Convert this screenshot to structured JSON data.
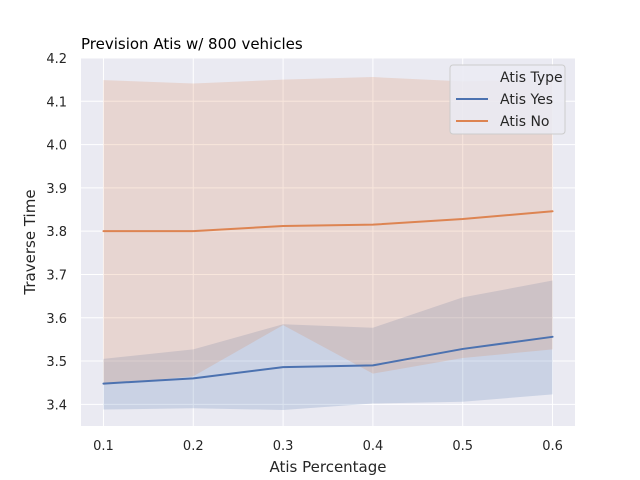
{
  "chart_data": {
    "type": "line",
    "title": "Prevision Atis w/ 800 vehicles",
    "xlabel": "Atis Percentage",
    "ylabel": "Traverse Time",
    "x": [
      0.1,
      0.2,
      0.3,
      0.4,
      0.5,
      0.6
    ],
    "x_tick_labels": [
      "0.1",
      "0.2",
      "0.3",
      "0.4",
      "0.5",
      "0.6"
    ],
    "y_ticks": [
      3.4,
      3.5,
      3.6,
      3.7,
      3.8,
      3.9,
      4.0,
      4.1,
      4.2
    ],
    "y_tick_labels": [
      "3.4",
      "3.5",
      "3.6",
      "3.7",
      "3.8",
      "3.9",
      "4.0",
      "4.1",
      "4.2"
    ],
    "xlim": [
      0.075,
      0.625
    ],
    "ylim": [
      3.35,
      4.2
    ],
    "grid": true,
    "legend": {
      "title": "Atis Type",
      "position": "top-right"
    },
    "series": [
      {
        "name": "Atis Yes",
        "color": "#4c72b0",
        "values": [
          3.448,
          3.46,
          3.486,
          3.49,
          3.528,
          3.556
        ],
        "ci_lower": [
          3.388,
          3.391,
          3.387,
          3.402,
          3.406,
          3.423
        ],
        "ci_upper": [
          3.505,
          3.527,
          3.585,
          3.577,
          3.647,
          3.686
        ]
      },
      {
        "name": "Atis No",
        "color": "#dd8452",
        "values": [
          3.8,
          3.8,
          3.812,
          3.815,
          3.828,
          3.846
        ],
        "ci_lower": [
          3.445,
          3.465,
          3.583,
          3.471,
          3.507,
          3.527
        ],
        "ci_upper": [
          4.149,
          4.141,
          4.15,
          4.156,
          4.146,
          4.15
        ]
      }
    ]
  }
}
